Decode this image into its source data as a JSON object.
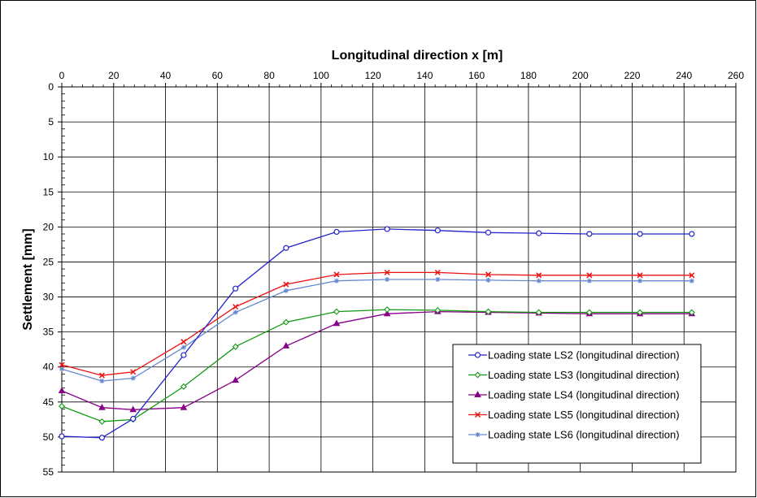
{
  "chart_data": {
    "type": "line",
    "xlabel": "Longitudinal direction   x  [m]",
    "ylabel": "Settlement  [mm]",
    "xlim": [
      0,
      260
    ],
    "ylim": [
      0,
      55
    ],
    "x_axis_position": "top",
    "y_axis_inverted": true,
    "grid": true,
    "legend_position": "bottom-right",
    "x_ticks": [
      0,
      20,
      40,
      60,
      80,
      100,
      120,
      140,
      160,
      180,
      200,
      220,
      240,
      260
    ],
    "y_ticks": [
      0,
      5,
      10,
      15,
      20,
      25,
      30,
      35,
      40,
      45,
      50,
      55
    ],
    "x": [
      0,
      15.5,
      27.5,
      47,
      67,
      86.5,
      106,
      125.5,
      145,
      164.5,
      184,
      203.5,
      223,
      243
    ],
    "series": [
      {
        "name": "Loading state LS2 (longitudinal direction)",
        "color": "#2222cc",
        "marker": "circle",
        "values": [
          49.9,
          50.1,
          47.4,
          38.3,
          28.8,
          23.0,
          20.7,
          20.3,
          20.5,
          20.8,
          20.9,
          21.0,
          21.0,
          21.0
        ]
      },
      {
        "name": "Loading state LS3 (longitudinal direction)",
        "color": "#119911",
        "marker": "diamond",
        "values": [
          45.6,
          47.8,
          47.5,
          42.8,
          37.1,
          33.6,
          32.1,
          31.8,
          31.9,
          32.1,
          32.2,
          32.2,
          32.2,
          32.2
        ]
      },
      {
        "name": "Loading state LS4 (longitudinal direction)",
        "color": "#880088",
        "marker": "triangle",
        "values": [
          43.4,
          45.8,
          46.1,
          45.8,
          41.9,
          37.0,
          33.8,
          32.4,
          32.1,
          32.2,
          32.3,
          32.4,
          32.4,
          32.4
        ]
      },
      {
        "name": "Loading state LS5 (longitudinal direction)",
        "color": "#ee1111",
        "marker": "x",
        "values": [
          39.7,
          41.2,
          40.7,
          36.4,
          31.4,
          28.2,
          26.8,
          26.5,
          26.5,
          26.8,
          26.9,
          26.9,
          26.9,
          26.9
        ]
      },
      {
        "name": "Loading state LS6 (longitudinal direction)",
        "color": "#6688cc",
        "marker": "star",
        "values": [
          40.3,
          42.0,
          41.6,
          37.2,
          32.2,
          29.1,
          27.7,
          27.5,
          27.5,
          27.6,
          27.7,
          27.7,
          27.7,
          27.7
        ]
      }
    ]
  }
}
